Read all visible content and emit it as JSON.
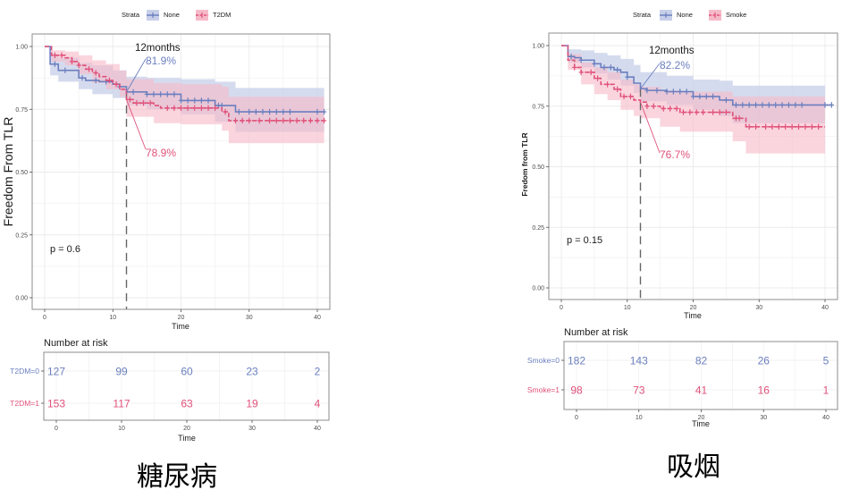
{
  "colors": {
    "none": "#6b7fbf",
    "group": "#e0517a",
    "none_band": "#c7cfe8",
    "group_band": "#f6b9c8",
    "overlap_band": "#c98aa8",
    "vline": "#666666"
  },
  "chart_data": [
    {
      "type": "line",
      "subtype": "kaplan-meier",
      "caption": "糖尿病",
      "legend": {
        "title": "Strata",
        "placement": "top",
        "entries": [
          "None",
          "T2DM"
        ]
      },
      "xlabel": "Time",
      "ylabel": "Freedom From TLR",
      "xlim": [
        -2,
        41.5
      ],
      "ylim": [
        -0.05,
        1.05
      ],
      "xticks": [
        0,
        10,
        20,
        30,
        40
      ],
      "yticks": [
        "0.00",
        "0.25",
        "0.50",
        "0.75",
        "1.00"
      ],
      "grid": true,
      "pvalue": "p = 0.6",
      "marker_time": 12,
      "marker_title": "12months",
      "series": [
        {
          "name": "None",
          "steps": [
            [
              0,
              1.0
            ],
            [
              0.8,
              0.93
            ],
            [
              2,
              0.905
            ],
            [
              5,
              0.875
            ],
            [
              6,
              0.865
            ],
            [
              8,
              0.86
            ],
            [
              10,
              0.85
            ],
            [
              11,
              0.84
            ],
            [
              12,
              0.819
            ],
            [
              15,
              0.81
            ],
            [
              20,
              0.785
            ],
            [
              25,
              0.765
            ],
            [
              28,
              0.74
            ],
            [
              41,
              0.74
            ]
          ],
          "upper": [
            [
              0,
              1.0
            ],
            [
              0.8,
              0.97
            ],
            [
              2,
              0.955
            ],
            [
              5,
              0.935
            ],
            [
              7,
              0.925
            ],
            [
              10,
              0.905
            ],
            [
              12,
              0.88
            ],
            [
              15,
              0.875
            ],
            [
              20,
              0.87
            ],
            [
              25,
              0.86
            ],
            [
              28,
              0.835
            ],
            [
              41,
              0.835
            ]
          ],
          "lower": [
            [
              0,
              1.0
            ],
            [
              0.8,
              0.885
            ],
            [
              2,
              0.86
            ],
            [
              5,
              0.83
            ],
            [
              7,
              0.81
            ],
            [
              10,
              0.795
            ],
            [
              12,
              0.765
            ],
            [
              15,
              0.75
            ],
            [
              20,
              0.73
            ],
            [
              25,
              0.7
            ],
            [
              28,
              0.66
            ],
            [
              41,
              0.66
            ]
          ],
          "censor": [
            1.5,
            3,
            5.5,
            7.5,
            9,
            11,
            13,
            15,
            16,
            17,
            18,
            19,
            20,
            21,
            22,
            23,
            24,
            25.5,
            26,
            28.5,
            30,
            31,
            32,
            33,
            34,
            35,
            36,
            40,
            41
          ],
          "annotation": "81.9%"
        },
        {
          "name": "T2DM",
          "steps": [
            [
              0,
              1.0
            ],
            [
              1,
              0.965
            ],
            [
              3,
              0.955
            ],
            [
              4,
              0.94
            ],
            [
              5,
              0.925
            ],
            [
              6,
              0.91
            ],
            [
              7,
              0.895
            ],
            [
              8,
              0.88
            ],
            [
              9,
              0.865
            ],
            [
              10,
              0.85
            ],
            [
              11,
              0.83
            ],
            [
              12,
              0.789
            ],
            [
              13,
              0.775
            ],
            [
              16,
              0.765
            ],
            [
              17,
              0.755
            ],
            [
              26,
              0.74
            ],
            [
              27,
              0.705
            ],
            [
              41,
              0.705
            ]
          ],
          "upper": [
            [
              0,
              1.0
            ],
            [
              1,
              0.985
            ],
            [
              3,
              0.98
            ],
            [
              5,
              0.965
            ],
            [
              7,
              0.945
            ],
            [
              9,
              0.93
            ],
            [
              11,
              0.905
            ],
            [
              12,
              0.87
            ],
            [
              16,
              0.855
            ],
            [
              20,
              0.85
            ],
            [
              26,
              0.84
            ],
            [
              27,
              0.8
            ],
            [
              41,
              0.8
            ]
          ],
          "lower": [
            [
              0,
              1.0
            ],
            [
              1,
              0.94
            ],
            [
              3,
              0.925
            ],
            [
              5,
              0.89
            ],
            [
              7,
              0.855
            ],
            [
              9,
              0.83
            ],
            [
              11,
              0.8
            ],
            [
              12,
              0.72
            ],
            [
              16,
              0.695
            ],
            [
              20,
              0.69
            ],
            [
              26,
              0.665
            ],
            [
              27,
              0.615
            ],
            [
              41,
              0.615
            ]
          ],
          "censor": [
            1.5,
            2.5,
            4,
            5,
            6.5,
            7.5,
            9.5,
            10.5,
            12.5,
            13.5,
            14.5,
            15.5,
            18,
            19,
            20,
            21,
            22,
            23,
            24,
            25,
            26.5,
            28,
            29,
            30,
            31.5,
            33,
            34,
            35,
            36,
            37,
            38,
            39,
            40,
            41
          ],
          "annotation": "78.9%"
        }
      ],
      "risk_table": {
        "title": "Number at risk",
        "xlabel": "Time",
        "times": [
          0,
          10,
          20,
          30,
          40
        ],
        "rows": [
          {
            "label": "T2DM=0",
            "values": [
              "127",
              "99",
              "60",
              "23",
              "2"
            ]
          },
          {
            "label": "T2DM=1",
            "values": [
              "153",
              "117",
              "63",
              "19",
              "4"
            ]
          }
        ]
      }
    },
    {
      "type": "line",
      "subtype": "kaplan-meier",
      "caption": "吸烟",
      "legend": {
        "title": "Strata",
        "placement": "top",
        "entries": [
          "None",
          "Smoke"
        ]
      },
      "xlabel": "Time",
      "ylabel": "Fredom from TLR",
      "xlim": [
        -2,
        41.5
      ],
      "ylim": [
        -0.05,
        1.05
      ],
      "xticks": [
        0,
        10,
        20,
        30,
        40
      ],
      "yticks": [
        "0.00",
        "0.25",
        "0.50",
        "0.75",
        "1.00"
      ],
      "grid": true,
      "pvalue": "p = 0.15",
      "marker_time": 12,
      "marker_title": "12months",
      "series": [
        {
          "name": "None",
          "steps": [
            [
              0,
              1.0
            ],
            [
              1,
              0.955
            ],
            [
              2,
              0.95
            ],
            [
              3,
              0.94
            ],
            [
              5,
              0.925
            ],
            [
              6,
              0.91
            ],
            [
              8,
              0.9
            ],
            [
              9,
              0.89
            ],
            [
              10,
              0.87
            ],
            [
              11,
              0.845
            ],
            [
              12,
              0.822
            ],
            [
              13,
              0.815
            ],
            [
              16,
              0.81
            ],
            [
              20,
              0.79
            ],
            [
              24,
              0.775
            ],
            [
              26,
              0.755
            ],
            [
              41,
              0.755
            ]
          ],
          "upper": [
            [
              0,
              1.0
            ],
            [
              1,
              0.985
            ],
            [
              3,
              0.98
            ],
            [
              5,
              0.97
            ],
            [
              7,
              0.96
            ],
            [
              9,
              0.945
            ],
            [
              11,
              0.92
            ],
            [
              12,
              0.89
            ],
            [
              16,
              0.875
            ],
            [
              20,
              0.86
            ],
            [
              24,
              0.855
            ],
            [
              26,
              0.835
            ],
            [
              40,
              0.835
            ]
          ],
          "lower": [
            [
              0,
              1.0
            ],
            [
              1,
              0.93
            ],
            [
              3,
              0.91
            ],
            [
              5,
              0.885
            ],
            [
              7,
              0.86
            ],
            [
              9,
              0.835
            ],
            [
              11,
              0.805
            ],
            [
              12,
              0.77
            ],
            [
              16,
              0.755
            ],
            [
              20,
              0.735
            ],
            [
              24,
              0.71
            ],
            [
              26,
              0.68
            ],
            [
              40,
              0.68
            ]
          ],
          "censor": [
            1.5,
            3,
            5,
            6.5,
            7.5,
            8.5,
            10,
            13,
            14.5,
            16,
            17,
            18,
            19,
            20,
            21,
            22,
            23,
            25,
            26.5,
            27.5,
            28.5,
            29.5,
            30.5,
            31.5,
            32.5,
            33.5,
            34.5,
            35.5,
            36.5,
            40,
            41
          ],
          "annotation": "82.2%"
        },
        {
          "name": "Smoke",
          "steps": [
            [
              0,
              1.0
            ],
            [
              1,
              0.94
            ],
            [
              2,
              0.91
            ],
            [
              3,
              0.89
            ],
            [
              5,
              0.865
            ],
            [
              6,
              0.84
            ],
            [
              8,
              0.82
            ],
            [
              9,
              0.79
            ],
            [
              11,
              0.775
            ],
            [
              12,
              0.767
            ],
            [
              13,
              0.75
            ],
            [
              15,
              0.74
            ],
            [
              18,
              0.725
            ],
            [
              26,
              0.7
            ],
            [
              28,
              0.665
            ],
            [
              40,
              0.665
            ]
          ],
          "upper": [
            [
              0,
              1.0
            ],
            [
              1,
              0.965
            ],
            [
              3,
              0.93
            ],
            [
              5,
              0.91
            ],
            [
              7,
              0.89
            ],
            [
              9,
              0.86
            ],
            [
              11,
              0.84
            ],
            [
              12,
              0.83
            ],
            [
              15,
              0.815
            ],
            [
              18,
              0.81
            ],
            [
              26,
              0.79
            ],
            [
              40,
              0.79
            ]
          ],
          "lower": [
            [
              0,
              1.0
            ],
            [
              1,
              0.9
            ],
            [
              3,
              0.84
            ],
            [
              5,
              0.8
            ],
            [
              7,
              0.775
            ],
            [
              9,
              0.735
            ],
            [
              11,
              0.71
            ],
            [
              12,
              0.7
            ],
            [
              15,
              0.665
            ],
            [
              18,
              0.645
            ],
            [
              26,
              0.605
            ],
            [
              28,
              0.555
            ],
            [
              40,
              0.555
            ]
          ],
          "censor": [
            2,
            3,
            4.5,
            5.5,
            7,
            8.5,
            9.5,
            10.5,
            13,
            14,
            15.5,
            16.5,
            17.5,
            18.5,
            19.5,
            20.5,
            21.5,
            23,
            24,
            25,
            26.5,
            27,
            28.5,
            29.5,
            31,
            32,
            33,
            34,
            35,
            36,
            37,
            38,
            39
          ],
          "annotation": "76.7%"
        }
      ],
      "risk_table": {
        "title": "Number at risk",
        "xlabel": "Time",
        "times": [
          0,
          10,
          20,
          30,
          40
        ],
        "rows": [
          {
            "label": "Smoke=0",
            "values": [
              "182",
              "143",
              "82",
              "26",
              "5"
            ]
          },
          {
            "label": "Smoke=1",
            "values": [
              "98",
              "73",
              "41",
              "16",
              "1"
            ]
          }
        ]
      }
    }
  ]
}
